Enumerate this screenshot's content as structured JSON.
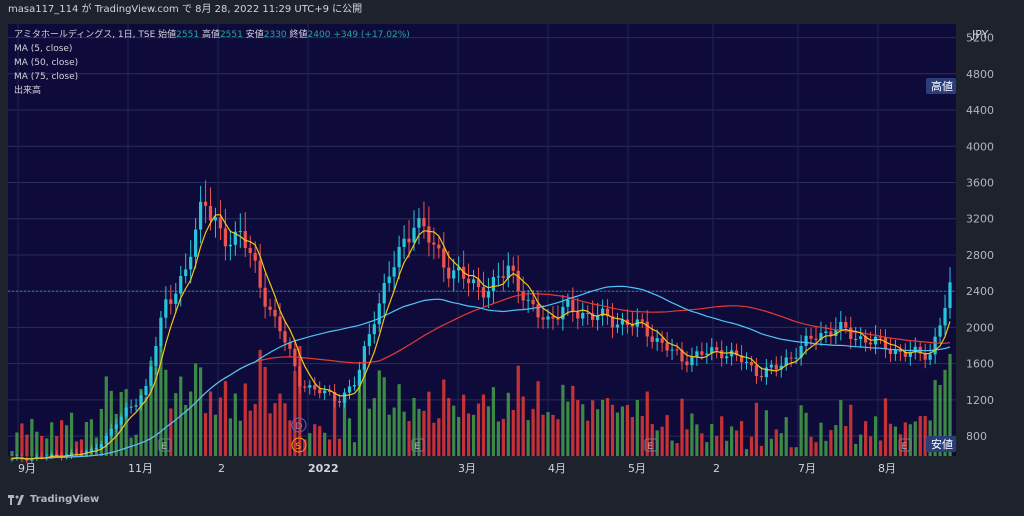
{
  "topbar": {
    "text": "masa117_114 が TradingView.com で 8月 28, 2022 11:29 UTC+9 に公開"
  },
  "legend": {
    "symbol": "アミタホールディングス, 1日, TSE",
    "open_label": "始値",
    "open": "2551",
    "high_label": "高値",
    "high": "2551",
    "low_label": "安値",
    "low": "2330",
    "close_label": "終値",
    "close": "2400",
    "change": "+349 (+17.02%)",
    "ma1": "MA (5, close)",
    "ma2": "MA (50, close)",
    "ma3": "MA (75, close)",
    "volume": "出来高"
  },
  "branding": "TradingView",
  "chart_data": {
    "type": "candlestick",
    "currency": "JPY",
    "price_ticks": [
      800,
      1200,
      1600,
      2000,
      2400,
      2800,
      3200,
      3600,
      4000,
      4400,
      4800,
      5200
    ],
    "x_ticks": [
      "9月",
      "11月",
      "2",
      "2022",
      "3月",
      "4月",
      "5月",
      "2",
      "7月",
      "8月"
    ],
    "high_marker": "高値",
    "low_marker": "安値",
    "last_price": 2400,
    "event_markers": [
      "E",
      "D",
      "S",
      "E",
      "E",
      "E"
    ],
    "colors": {
      "up": "#26c6da",
      "down": "#ef5350",
      "ma5": "#f5c518",
      "ma50": "#4fc3f7",
      "ma75": "#e53935",
      "vol_up": "#43a047",
      "vol_down": "#e53935",
      "bg": "#0e0b3a"
    },
    "close_path": [
      540,
      560,
      575,
      600,
      620,
      800,
      1100,
      1300,
      2300,
      2500,
      3500,
      2900,
      3100,
      2400,
      2000,
      1400,
      1300,
      1200,
      1400,
      2200,
      2700,
      3200,
      2900,
      2600,
      2500,
      2400,
      2700,
      2200,
      2100,
      2200,
      2150,
      2100,
      2050,
      2000,
      1800,
      1650,
      1700,
      1750,
      1650,
      1500,
      1550,
      1750,
      1900,
      2000,
      1900,
      1850,
      1750,
      1700,
      1720,
      2400
    ]
  }
}
